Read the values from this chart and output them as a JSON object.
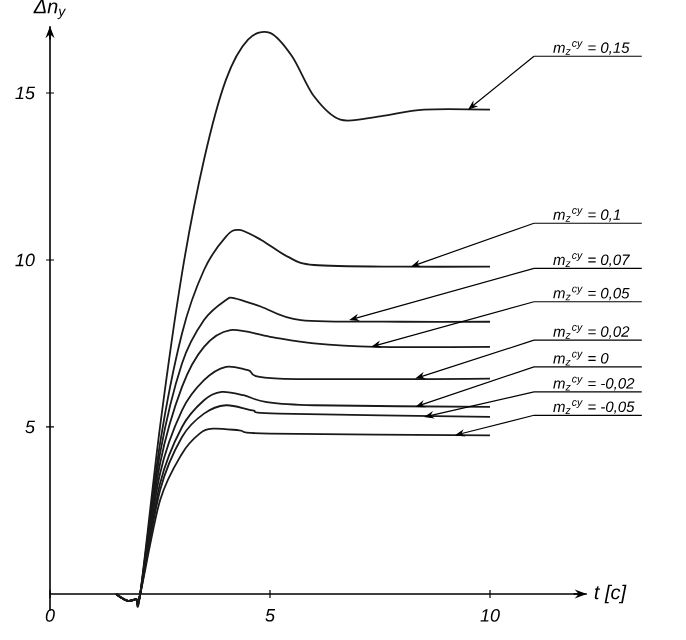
{
  "chart_data": {
    "type": "line",
    "xlabel": "t [с]",
    "ylabel": "Δn$_{y}$",
    "xlim": [
      0,
      12.2
    ],
    "ylim": [
      -0.5,
      17
    ],
    "xticks": [
      0,
      5,
      10
    ],
    "yticks": [
      5,
      10,
      15
    ],
    "grid": false,
    "marker": "none",
    "line_style": "solid",
    "series": [
      {
        "color": "#1a1a1a",
        "x": [
          1.5,
          1.75,
          1.95,
          2.05,
          2.5,
          3,
          3.5,
          4,
          4.5,
          5,
          5.5,
          6,
          6.6,
          7.5,
          8.5,
          10
        ],
        "values": [
          0,
          -0.2,
          -0.15,
          0,
          5,
          9.6,
          13,
          15.4,
          16.6,
          16.8,
          16.1,
          14.9,
          14.2,
          14.3,
          14.5,
          14.5
        ]
      },
      {
        "color": "#1a1a1a",
        "x": [
          1.5,
          1.75,
          1.95,
          2.05,
          2.5,
          3,
          3.5,
          4,
          4.3,
          4.8,
          5.4,
          6,
          8,
          10
        ],
        "values": [
          0,
          -0.2,
          -0.15,
          0,
          4.5,
          7.8,
          9.7,
          10.7,
          10.9,
          10.6,
          10.1,
          9.85,
          9.8,
          9.8
        ]
      },
      {
        "color": "#1a1a1a",
        "x": [
          1.5,
          1.75,
          1.95,
          2.05,
          2.5,
          3,
          3.5,
          4,
          4.2,
          4.8,
          5.7,
          8,
          10
        ],
        "values": [
          0,
          -0.2,
          -0.15,
          0,
          4.2,
          6.9,
          8.2,
          8.8,
          8.85,
          8.6,
          8.2,
          8.15,
          8.15
        ]
      },
      {
        "color": "#1a1a1a",
        "x": [
          1.5,
          1.75,
          1.95,
          2.05,
          2.5,
          3,
          3.5,
          4.1,
          5,
          6,
          7.4,
          10
        ],
        "values": [
          0,
          -0.2,
          -0.15,
          0,
          3.9,
          6.2,
          7.4,
          7.9,
          7.7,
          7.5,
          7.4,
          7.4
        ]
      },
      {
        "color": "#1a1a1a",
        "x": [
          1.5,
          1.75,
          1.95,
          2.05,
          2.5,
          3,
          3.5,
          4,
          4.5,
          5.2,
          10
        ],
        "values": [
          0,
          -0.2,
          -0.15,
          0,
          3.6,
          5.5,
          6.4,
          6.8,
          6.7,
          6.45,
          6.45
        ]
      },
      {
        "color": "#1a1a1a",
        "x": [
          1.5,
          1.75,
          1.95,
          2.05,
          2.5,
          3,
          3.5,
          3.9,
          4.4,
          4.9,
          6,
          10
        ],
        "values": [
          0,
          -0.2,
          -0.15,
          0,
          3.3,
          5,
          5.8,
          6.05,
          5.95,
          5.75,
          5.65,
          5.6
        ]
      },
      {
        "color": "#1a1a1a",
        "x": [
          1.5,
          1.75,
          1.95,
          2.05,
          2.5,
          3,
          3.5,
          4,
          4.6,
          5.2,
          10
        ],
        "values": [
          0,
          -0.2,
          -0.15,
          0,
          3.1,
          4.7,
          5.4,
          5.65,
          5.5,
          5.4,
          5.3
        ]
      },
      {
        "color": "#1a1a1a",
        "x": [
          1.5,
          1.75,
          1.95,
          2.05,
          2.5,
          3,
          3.4,
          3.7,
          4.3,
          5,
          10
        ],
        "values": [
          0,
          -0.2,
          -0.15,
          0,
          2.8,
          4.2,
          4.8,
          4.95,
          4.9,
          4.8,
          4.75
        ]
      }
    ],
    "annotations": [
      {
        "text": "m$_{z}$$^{cy}$ = 0,15",
        "x": 9.5,
        "y": 14.5
      },
      {
        "text": "m$_{z}$$^{cy}$ = 0,1",
        "x": 8.2,
        "y": 9.8
      },
      {
        "text": "m$_{z}$$^{cy}$ = 0,07",
        "x": 6.8,
        "y": 8.2
      },
      {
        "text": "m$_{z}$$^{cy}$ = 0,05",
        "x": 7.3,
        "y": 7.4
      },
      {
        "text": "m$_{z}$$^{cy}$ = 0,02",
        "x": 8.3,
        "y": 6.45
      },
      {
        "text": "m$_{z}$$^{cy}$ = 0",
        "x": 8.3,
        "y": 5.6
      },
      {
        "text": "m$_{z}$$^{cy}$ = -0,02",
        "x": 8.5,
        "y": 5.3
      },
      {
        "text": "m$_{z}$$^{cy}$ = -0,05",
        "x": 9.2,
        "y": 4.75
      }
    ]
  }
}
